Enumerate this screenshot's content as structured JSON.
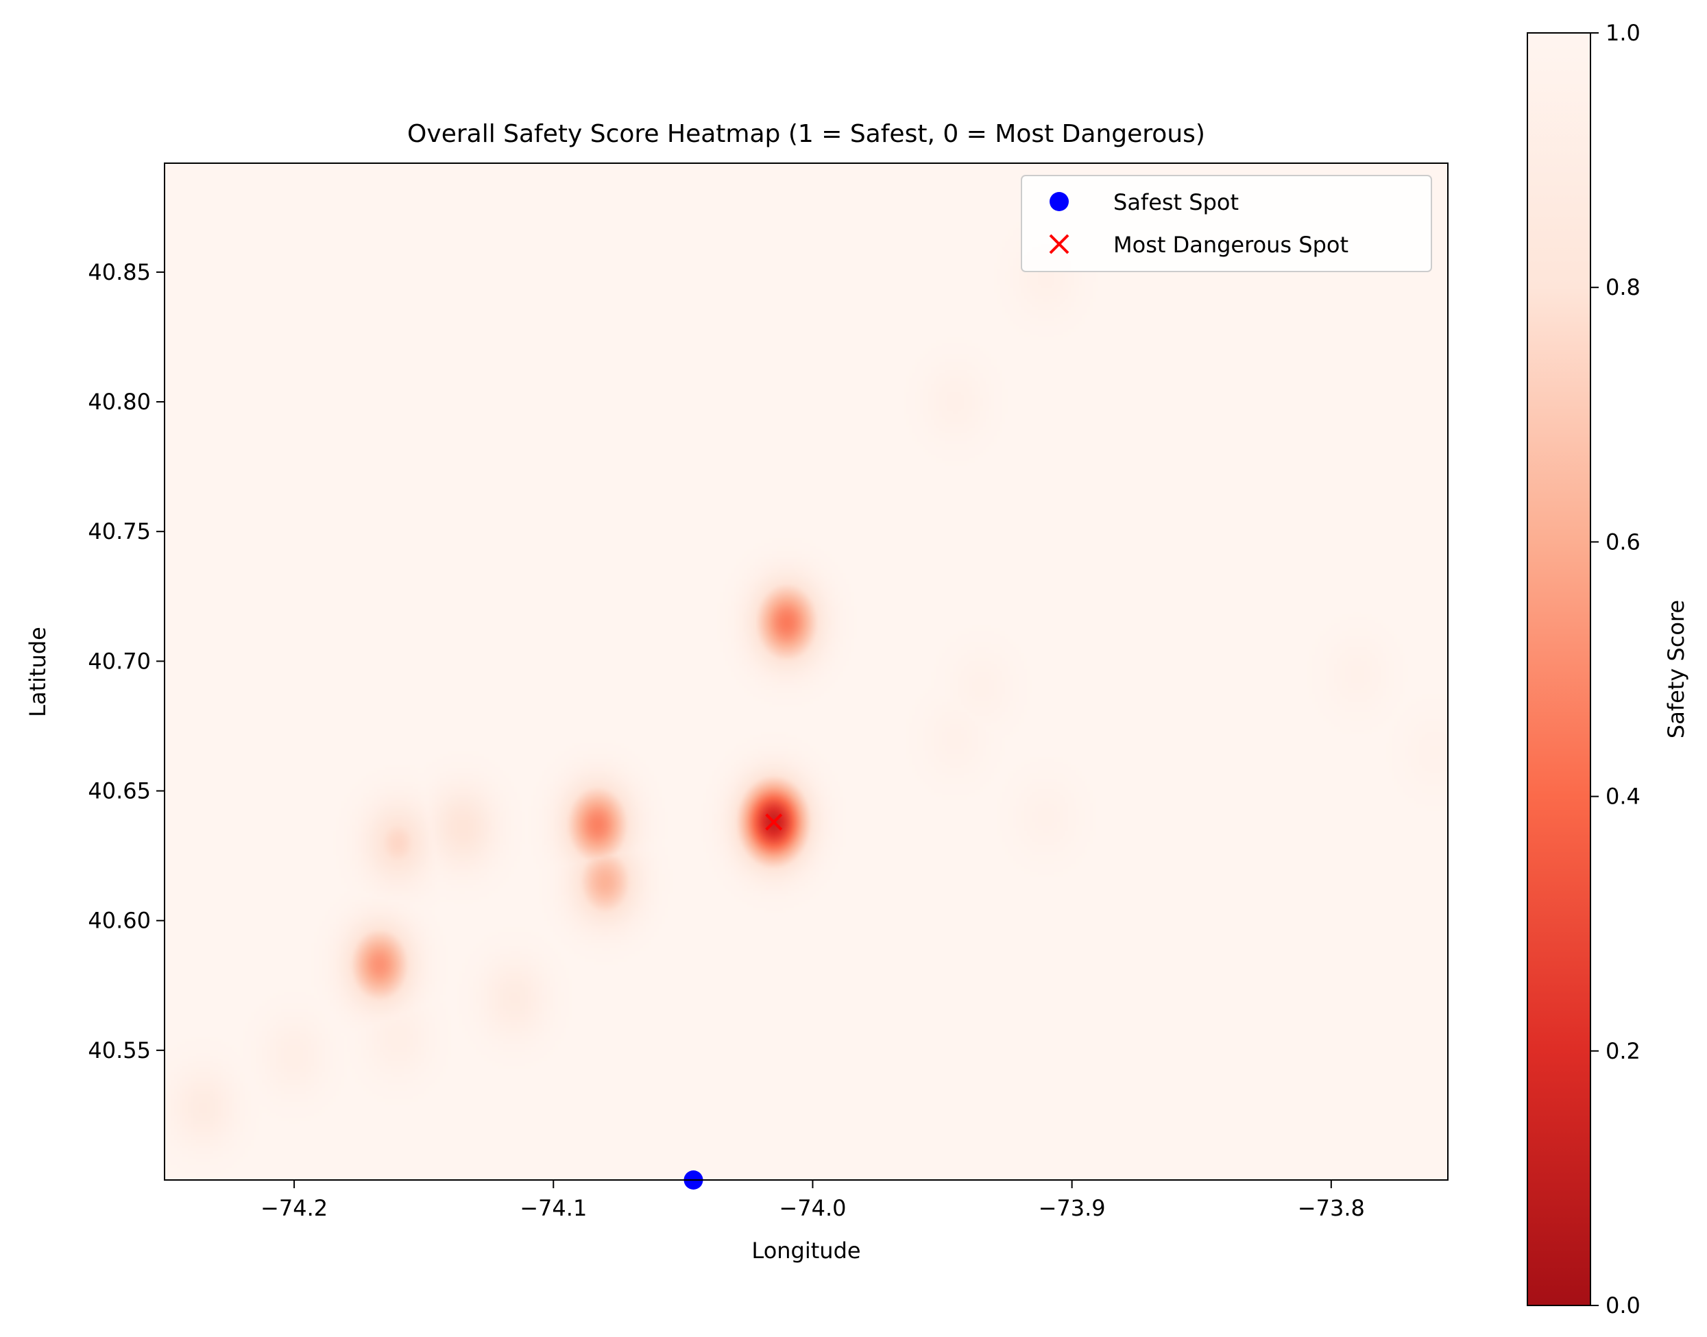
{
  "chart_data": {
    "type": "heatmap",
    "title": "Overall Safety Score Heatmap (1 = Safest, 0 = Most Dangerous)",
    "xlabel": "Longitude",
    "ylabel": "Latitude",
    "xlim": [
      -74.25,
      -73.755
    ],
    "ylim": [
      40.5,
      40.892
    ],
    "xticks": [
      -74.2,
      -74.1,
      -74.0,
      -73.9,
      -73.8
    ],
    "xtick_labels": [
      "−74.2",
      "−74.1",
      "−74.0",
      "−73.9",
      "−73.8"
    ],
    "yticks": [
      40.55,
      40.6,
      40.65,
      40.7,
      40.75,
      40.8,
      40.85
    ],
    "ytick_labels": [
      "40.55",
      "40.60",
      "40.65",
      "40.70",
      "40.75",
      "40.80",
      "40.85"
    ],
    "colormap": "Reds_r",
    "colorbar": {
      "label": "Safety Score",
      "range": [
        0,
        1
      ],
      "ticks": [
        0,
        0.2,
        0.4,
        0.6,
        0.8,
        1.0
      ],
      "tick_labels": [
        "0.0",
        "0.2",
        "0.4",
        "0.6",
        "0.8",
        "1.0"
      ],
      "colors": [
        "#a50f15",
        "#de2d26",
        "#fb6a4a",
        "#fcae91",
        "#fee5d9",
        "#fff5f0"
      ]
    },
    "hotspots": [
      {
        "lon": -74.015,
        "lat": 40.638,
        "min_score": 0.12
      },
      {
        "lon": -74.01,
        "lat": 40.715,
        "min_score": 0.45
      },
      {
        "lon": -74.083,
        "lat": 40.637,
        "min_score": 0.47
      },
      {
        "lon": -74.08,
        "lat": 40.615,
        "min_score": 0.62
      },
      {
        "lon": -74.167,
        "lat": 40.583,
        "min_score": 0.52
      },
      {
        "lon": -74.16,
        "lat": 40.63,
        "min_score": 0.75
      },
      {
        "lon": -74.135,
        "lat": 40.636,
        "min_score": 0.8
      },
      {
        "lon": -74.115,
        "lat": 40.57,
        "min_score": 0.88
      },
      {
        "lon": -74.235,
        "lat": 40.528,
        "min_score": 0.88
      },
      {
        "lon": -74.2,
        "lat": 40.548,
        "min_score": 0.92
      },
      {
        "lon": -74.16,
        "lat": 40.555,
        "min_score": 0.92
      },
      {
        "lon": -73.91,
        "lat": 40.848,
        "min_score": 0.94
      },
      {
        "lon": -73.945,
        "lat": 40.8,
        "min_score": 0.94
      },
      {
        "lon": -73.935,
        "lat": 40.69,
        "min_score": 0.95
      },
      {
        "lon": -73.945,
        "lat": 40.67,
        "min_score": 0.95
      },
      {
        "lon": -73.91,
        "lat": 40.64,
        "min_score": 0.95
      },
      {
        "lon": -73.79,
        "lat": 40.695,
        "min_score": 0.95
      },
      {
        "lon": -73.76,
        "lat": 40.665,
        "min_score": 0.96
      }
    ],
    "legend": {
      "placement": "upper right",
      "entries": [
        {
          "label": "Safest Spot",
          "marker": "circle",
          "color": "#0000ff"
        },
        {
          "label": "Most Dangerous Spot",
          "marker": "x",
          "color": "#ff0000"
        }
      ]
    },
    "points": {
      "safest": {
        "lon": -74.046,
        "lat": 40.5,
        "label": "Safest Spot"
      },
      "most_dangerous": {
        "lon": -74.015,
        "lat": 40.638,
        "label": "Most Dangerous Spot"
      }
    }
  }
}
